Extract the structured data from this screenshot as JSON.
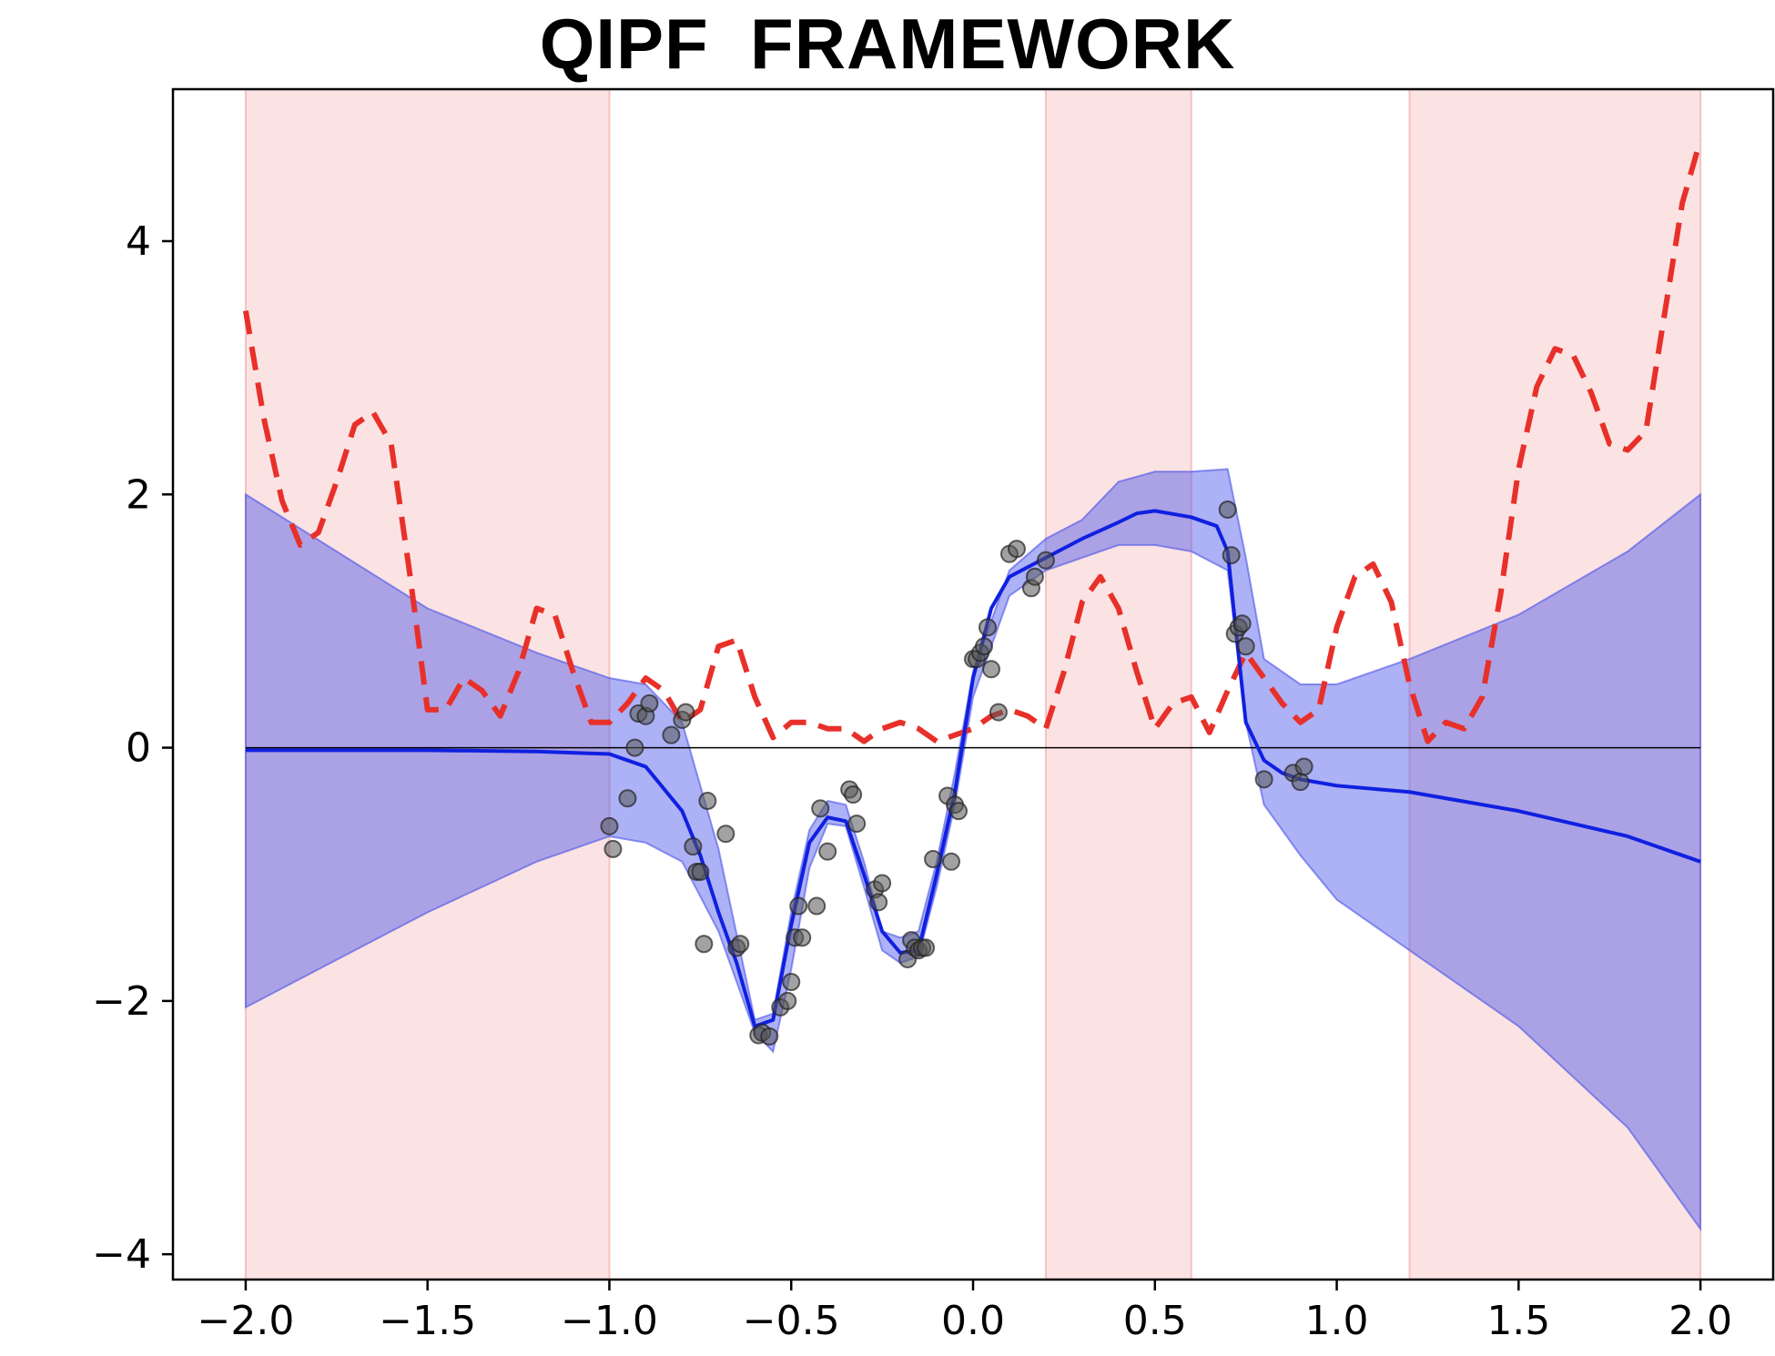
{
  "chart_data": {
    "type": "line",
    "title": "QIPF  FRAMEWORK",
    "xlabel": "",
    "ylabel": "",
    "xlim": [
      -2.2,
      2.2
    ],
    "ylim": [
      -4.2,
      5.2
    ],
    "grid": false,
    "xticks": [
      -2.0,
      -1.5,
      -1.0,
      -0.5,
      0.0,
      0.5,
      1.0,
      1.5,
      2.0
    ],
    "xtick_labels": [
      "−2.0",
      "−1.5",
      "−1.0",
      "−0.5",
      "0.0",
      "0.5",
      "1.0",
      "1.5",
      "2.0"
    ],
    "yticks": [
      -4,
      -2,
      0,
      2,
      4
    ],
    "ytick_labels": [
      "−4",
      "−2",
      "0",
      "2",
      "4"
    ],
    "zero_line": 0,
    "colors": {
      "shaded_region": "#f4b6b6",
      "band_fill": "#4a52e8",
      "mean_line": "#1020e0",
      "dashed_line": "#e8302a",
      "points": "#555555"
    },
    "shaded_regions": [
      [
        -2.0,
        -1.0
      ],
      [
        0.2,
        0.6
      ],
      [
        1.2,
        2.0
      ]
    ],
    "band": {
      "x": [
        -2.0,
        -1.5,
        -1.2,
        -1.0,
        -0.9,
        -0.8,
        -0.7,
        -0.6,
        -0.55,
        -0.5,
        -0.45,
        -0.4,
        -0.35,
        -0.3,
        -0.25,
        -0.2,
        -0.15,
        -0.1,
        -0.05,
        0.0,
        0.1,
        0.2,
        0.3,
        0.4,
        0.5,
        0.6,
        0.7,
        0.75,
        0.8,
        0.9,
        1.0,
        1.2,
        1.5,
        1.8,
        2.0
      ],
      "upper": [
        2.0,
        1.1,
        0.75,
        0.55,
        0.5,
        0.2,
        -0.8,
        -2.15,
        -2.1,
        -1.3,
        -0.65,
        -0.42,
        -0.45,
        -0.9,
        -1.45,
        -1.5,
        -1.45,
        -0.9,
        -0.2,
        0.6,
        1.4,
        1.65,
        1.8,
        2.1,
        2.18,
        2.18,
        2.2,
        1.5,
        0.7,
        0.5,
        0.5,
        0.7,
        1.05,
        1.55,
        2.0
      ],
      "lower": [
        -2.05,
        -1.3,
        -0.9,
        -0.7,
        -0.75,
        -0.9,
        -1.45,
        -2.25,
        -2.4,
        -1.75,
        -0.95,
        -0.6,
        -0.62,
        -1.1,
        -1.6,
        -1.7,
        -1.65,
        -1.1,
        -0.45,
        0.4,
        1.2,
        1.4,
        1.5,
        1.6,
        1.6,
        1.55,
        1.4,
        0.2,
        -0.45,
        -0.85,
        -1.2,
        -1.6,
        -2.2,
        -3.0,
        -3.8
      ]
    },
    "series": [
      {
        "kind": "mean",
        "x": [
          -2.0,
          -1.5,
          -1.2,
          -1.0,
          -0.9,
          -0.8,
          -0.75,
          -0.7,
          -0.65,
          -0.6,
          -0.55,
          -0.5,
          -0.45,
          -0.4,
          -0.35,
          -0.3,
          -0.25,
          -0.2,
          -0.15,
          -0.1,
          -0.05,
          0.0,
          0.05,
          0.1,
          0.2,
          0.3,
          0.4,
          0.45,
          0.5,
          0.6,
          0.67,
          0.7,
          0.72,
          0.75,
          0.8,
          0.85,
          0.9,
          1.0,
          1.2,
          1.5,
          1.8,
          2.0
        ],
        "y": [
          -0.02,
          -0.02,
          -0.03,
          -0.05,
          -0.15,
          -0.5,
          -0.85,
          -1.3,
          -1.7,
          -2.2,
          -2.15,
          -1.4,
          -0.75,
          -0.55,
          -0.58,
          -1.0,
          -1.45,
          -1.62,
          -1.6,
          -1.0,
          -0.35,
          0.55,
          1.1,
          1.35,
          1.5,
          1.65,
          1.78,
          1.85,
          1.87,
          1.82,
          1.75,
          1.55,
          1.0,
          0.2,
          -0.1,
          -0.2,
          -0.25,
          -0.3,
          -0.35,
          -0.5,
          -0.7,
          -0.9
        ]
      },
      {
        "kind": "dashed",
        "x": [
          -2.0,
          -1.95,
          -1.9,
          -1.85,
          -1.8,
          -1.75,
          -1.7,
          -1.65,
          -1.6,
          -1.55,
          -1.5,
          -1.45,
          -1.4,
          -1.35,
          -1.3,
          -1.25,
          -1.2,
          -1.15,
          -1.1,
          -1.05,
          -1.0,
          -0.95,
          -0.9,
          -0.85,
          -0.8,
          -0.75,
          -0.7,
          -0.65,
          -0.6,
          -0.55,
          -0.5,
          -0.45,
          -0.4,
          -0.35,
          -0.3,
          -0.25,
          -0.2,
          -0.15,
          -0.1,
          -0.05,
          0.0,
          0.05,
          0.1,
          0.15,
          0.2,
          0.25,
          0.3,
          0.35,
          0.4,
          0.45,
          0.5,
          0.55,
          0.6,
          0.65,
          0.7,
          0.75,
          0.8,
          0.85,
          0.9,
          0.95,
          1.0,
          1.05,
          1.1,
          1.15,
          1.2,
          1.25,
          1.3,
          1.35,
          1.4,
          1.45,
          1.5,
          1.55,
          1.6,
          1.65,
          1.7,
          1.75,
          1.8,
          1.85,
          1.9,
          1.95,
          2.0
        ],
        "y": [
          3.45,
          2.6,
          1.95,
          1.6,
          1.7,
          2.1,
          2.55,
          2.65,
          2.4,
          1.4,
          0.3,
          0.3,
          0.55,
          0.45,
          0.25,
          0.6,
          1.1,
          1.05,
          0.6,
          0.2,
          0.2,
          0.35,
          0.55,
          0.45,
          0.2,
          0.3,
          0.8,
          0.85,
          0.4,
          0.08,
          0.2,
          0.2,
          0.15,
          0.15,
          0.05,
          0.15,
          0.2,
          0.15,
          0.05,
          0.1,
          0.15,
          0.25,
          0.3,
          0.25,
          0.15,
          0.6,
          1.15,
          1.35,
          1.1,
          0.6,
          0.15,
          0.35,
          0.4,
          0.12,
          0.45,
          0.75,
          0.55,
          0.35,
          0.2,
          0.3,
          0.95,
          1.35,
          1.45,
          1.15,
          0.5,
          0.05,
          0.2,
          0.15,
          0.4,
          1.2,
          2.2,
          2.85,
          3.15,
          3.1,
          2.8,
          2.4,
          2.35,
          2.5,
          3.4,
          4.3,
          4.8
        ]
      }
    ],
    "points": {
      "x": [
        -1.0,
        -0.99,
        -0.95,
        -0.93,
        -0.92,
        -0.9,
        -0.89,
        -0.83,
        -0.8,
        -0.79,
        -0.77,
        -0.76,
        -0.75,
        -0.74,
        -0.73,
        -0.68,
        -0.65,
        -0.64,
        -0.59,
        -0.58,
        -0.56,
        -0.53,
        -0.51,
        -0.5,
        -0.49,
        -0.48,
        -0.47,
        -0.43,
        -0.42,
        -0.4,
        -0.34,
        -0.33,
        -0.32,
        -0.27,
        -0.26,
        -0.25,
        -0.18,
        -0.17,
        -0.16,
        -0.15,
        -0.14,
        -0.13,
        -0.11,
        -0.07,
        -0.06,
        -0.05,
        -0.04,
        0.0,
        0.01,
        0.02,
        0.03,
        0.04,
        0.05,
        0.07,
        0.1,
        0.12,
        0.16,
        0.17,
        0.2,
        0.7,
        0.71,
        0.72,
        0.73,
        0.74,
        0.75,
        0.8,
        0.88,
        0.9,
        0.91
      ],
      "y": [
        -0.62,
        -0.8,
        -0.4,
        0.0,
        0.27,
        0.25,
        0.35,
        0.1,
        0.22,
        0.28,
        -0.78,
        -0.98,
        -0.98,
        -1.55,
        -0.42,
        -0.68,
        -1.58,
        -1.55,
        -2.27,
        -2.25,
        -2.28,
        -2.05,
        -2.0,
        -1.85,
        -1.5,
        -1.25,
        -1.5,
        -1.25,
        -0.48,
        -0.82,
        -0.33,
        -0.37,
        -0.6,
        -1.12,
        -1.22,
        -1.07,
        -1.67,
        -1.52,
        -1.58,
        -1.6,
        -1.58,
        -1.58,
        -0.88,
        -0.38,
        -0.9,
        -0.45,
        -0.5,
        0.7,
        0.7,
        0.75,
        0.8,
        0.95,
        0.62,
        0.28,
        1.53,
        1.57,
        1.26,
        1.35,
        1.48,
        1.88,
        1.52,
        0.9,
        0.95,
        0.98,
        0.8,
        -0.25,
        -0.2,
        -0.27,
        -0.15
      ]
    }
  }
}
